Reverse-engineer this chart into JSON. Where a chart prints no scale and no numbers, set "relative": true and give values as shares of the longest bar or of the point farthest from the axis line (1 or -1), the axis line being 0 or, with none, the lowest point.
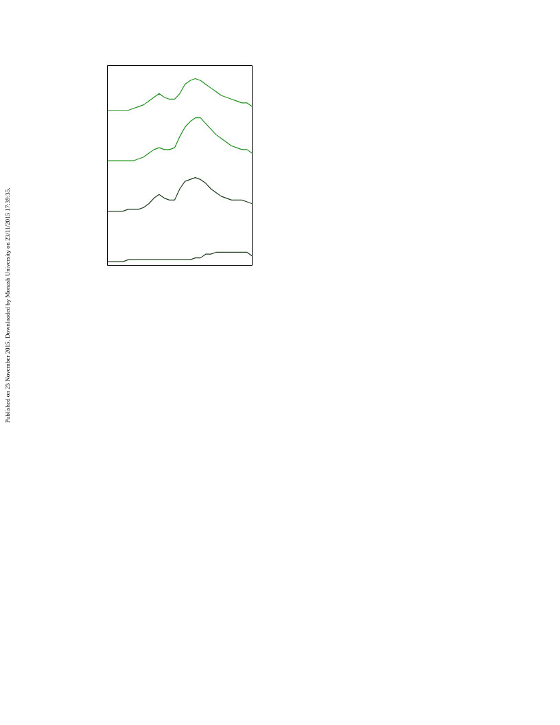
{
  "chart_data": {
    "type": "line",
    "relative": true,
    "grid": false,
    "categories": [
      null,
      null,
      null,
      null,
      null,
      null,
      null,
      null,
      null,
      null,
      null,
      null,
      null,
      null,
      null,
      null,
      null,
      null,
      null,
      null,
      null,
      null,
      null,
      null,
      null,
      null,
      null,
      null,
      null
    ],
    "series": [
      {
        "color": "#1f8f1f",
        "values": [
          0.83,
          0.83,
          0.83,
          0.83,
          0.83,
          0.84,
          0.85,
          0.86,
          0.88,
          0.9,
          0.92,
          0.9,
          0.89,
          0.89,
          0.92,
          0.97,
          0.99,
          1,
          0.99,
          0.97,
          0.95,
          0.93,
          0.91,
          0.9,
          0.89,
          0.88,
          0.87,
          0.87,
          0.85
        ]
      },
      {
        "color": "#1f8f1f",
        "values": [
          0.56,
          0.56,
          0.56,
          0.56,
          0.56,
          0.56,
          0.57,
          0.58,
          0.6,
          0.62,
          0.63,
          0.62,
          0.62,
          0.63,
          0.69,
          0.74,
          0.77,
          0.79,
          0.79,
          0.76,
          0.73,
          0.7,
          0.68,
          0.66,
          0.64,
          0.63,
          0.62,
          0.62,
          0.6
        ]
      },
      {
        "color": "#1e3d1e",
        "values": [
          0.29,
          0.29,
          0.29,
          0.29,
          0.3,
          0.3,
          0.3,
          0.31,
          0.33,
          0.36,
          0.38,
          0.36,
          0.35,
          0.35,
          0.41,
          0.45,
          0.46,
          0.47,
          0.46,
          0.44,
          0.41,
          0.39,
          0.37,
          0.36,
          0.35,
          0.35,
          0.35,
          0.34,
          0.33
        ]
      },
      {
        "color": "#1e3d1e",
        "values": [
          0.02,
          0.02,
          0.02,
          0.02,
          0.03,
          0.03,
          0.03,
          0.03,
          0.03,
          0.03,
          0.03,
          0.03,
          0.03,
          0.03,
          0.03,
          0.03,
          0.03,
          0.04,
          0.04,
          0.06,
          0.06,
          0.07,
          0.07,
          0.07,
          0.07,
          0.07,
          0.07,
          0.07,
          0.05
        ]
      }
    ],
    "annotations": [
      "Published on 23 November 2015. Downloaded by Monash University on 23/11/2015 17:39:35."
    ]
  }
}
